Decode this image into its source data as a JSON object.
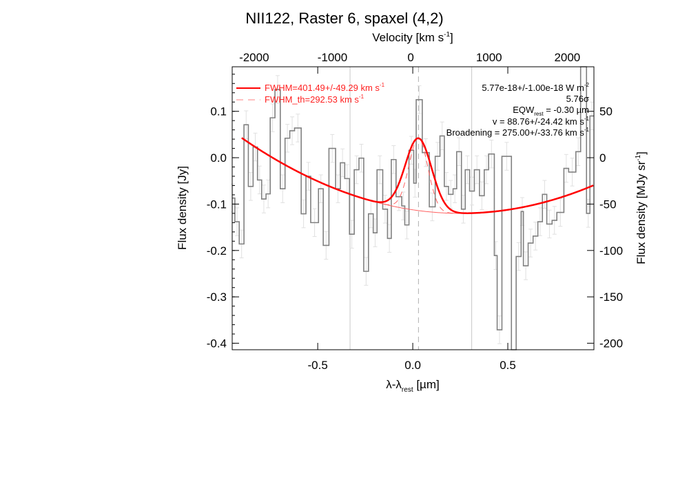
{
  "chart_data": {
    "type": "line",
    "title": "NII122, Raster 6, spaxel (4,2)",
    "xlabel": "λ-λ",
    "xlabel_sub": "rest",
    "xlabel_unit": " [µm]",
    "ylabel": "Flux density [Jy]",
    "top_xlabel": "Velocity [km s",
    "top_xlabel_sup": "-1",
    "top_xlabel_end": "]",
    "right_ylabel": "Flux density [MJy sr",
    "right_ylabel_sup": "-1",
    "right_ylabel_end": "]",
    "xlim": [
      -0.95,
      0.953
    ],
    "ylim": [
      -0.414,
      0.196
    ],
    "velocity_lim": [
      -2280,
      2340
    ],
    "xticks": [
      -0.5,
      0.0,
      0.5
    ],
    "xtick_labels": [
      "-0.5",
      "0.0",
      "0.5"
    ],
    "yticks": [
      0.1,
      0.0,
      -0.1,
      -0.2,
      -0.3,
      -0.4
    ],
    "ytick_labels": [
      "0.1",
      "0.0",
      "-0.1",
      "-0.2",
      "-0.3",
      "-0.4"
    ],
    "velocity_ticks": [
      -2000,
      -1000,
      0,
      1000,
      2000
    ],
    "velocity_tick_labels": [
      "-2000",
      "-1000",
      "0",
      "1000",
      "2000"
    ],
    "right_ticks": [
      50,
      0,
      -50,
      -100,
      -150,
      -200
    ],
    "right_tick_labels": [
      "50",
      "0",
      "-50",
      "-100",
      "-150",
      "-200"
    ],
    "spectrum": {
      "edges": [
        -0.958,
        -0.936,
        -0.913,
        -0.888,
        -0.865,
        -0.84,
        -0.817,
        -0.795,
        -0.772,
        -0.75,
        -0.725,
        -0.697,
        -0.672,
        -0.647,
        -0.622,
        -0.587,
        -0.562,
        -0.537,
        -0.496,
        -0.471,
        -0.441,
        -0.406,
        -0.381,
        -0.358,
        -0.333,
        -0.308,
        -0.283,
        -0.258,
        -0.233,
        -0.208,
        -0.188,
        -0.158,
        -0.133,
        -0.113,
        -0.088,
        -0.058,
        -0.042,
        -0.02,
        0.005,
        0.018,
        0.05,
        0.087,
        0.118,
        0.143,
        0.166,
        0.188,
        0.212,
        0.231,
        0.256,
        0.276,
        0.299,
        0.324,
        0.351,
        0.376,
        0.399,
        0.429,
        0.444,
        0.469,
        0.519,
        0.544,
        0.57,
        0.582,
        0.607,
        0.633,
        0.658,
        0.682,
        0.705,
        0.733,
        0.758,
        0.795,
        0.82,
        0.858,
        0.883,
        0.914,
        0.932,
        0.953
      ],
      "values": [
        -0.087,
        -0.138,
        -0.186,
        0.071,
        -0.062,
        0.023,
        -0.048,
        -0.089,
        -0.078,
        0.086,
        0.147,
        -0.067,
        0.042,
        0.058,
        0.064,
        -0.121,
        -0.04,
        -0.14,
        -0.067,
        -0.189,
        0.02,
        -0.067,
        -0.011,
        -0.045,
        -0.165,
        -0.026,
        -0.001,
        -0.245,
        -0.121,
        -0.162,
        -0.026,
        -0.111,
        -0.174,
        -0.004,
        -0.084,
        -0.104,
        -0.145,
        0.016,
        -0.055,
        0.125,
        0.011,
        -0.106,
        0.003,
        0.047,
        -0.062,
        -0.079,
        -0.067,
        0.013,
        -0.111,
        -0.026,
        -0.072,
        -0.026,
        -0.082,
        -0.026,
        0.008,
        -0.211,
        -0.371,
        0.003,
        -0.45,
        -0.213,
        -0.116,
        -0.233,
        -0.184,
        -0.169,
        -0.138,
        -0.079,
        -0.143,
        -0.135,
        -0.118,
        -0.023,
        -0.031,
        0.013,
        0.25,
        -0.12,
        0.09
      ],
      "error": 0.03,
      "color": "#808080"
    },
    "fit": {
      "color": "#ff0000",
      "continuum": {
        "center": 0.25,
        "curvature": 0.123,
        "minimum": -0.12
      },
      "line": {
        "center": 0.03,
        "amplitude": 0.156,
        "fwhm_um": 0.163
      },
      "line_th": {
        "fwhm_um": 0.118
      }
    },
    "vlines": {
      "solid": [
        -0.33,
        0.31
      ],
      "dashed": [
        0.03
      ]
    },
    "legend": [
      {
        "label": "FWHM=401.49+/-49.29 km s",
        "sup": "-1",
        "style": "solid"
      },
      {
        "label": "FWHM_th=292.53 km s",
        "sup": "-1",
        "style": "dashed"
      }
    ],
    "annotations": {
      "flux": "5.77e-18+/-1.00e-18 W m",
      "flux_sup": "-2",
      "sigma": "5.76σ",
      "eqw": "EQW",
      "eqw_sub": "rest",
      "eqw_val": " = -0.30 µm",
      "velocity": "v = 88.76+/-24.42 km s",
      "velocity_sup": "-1",
      "broadening": "Broadening = 275.00+/-33.76 km s",
      "broadening_sup": "-1"
    }
  }
}
